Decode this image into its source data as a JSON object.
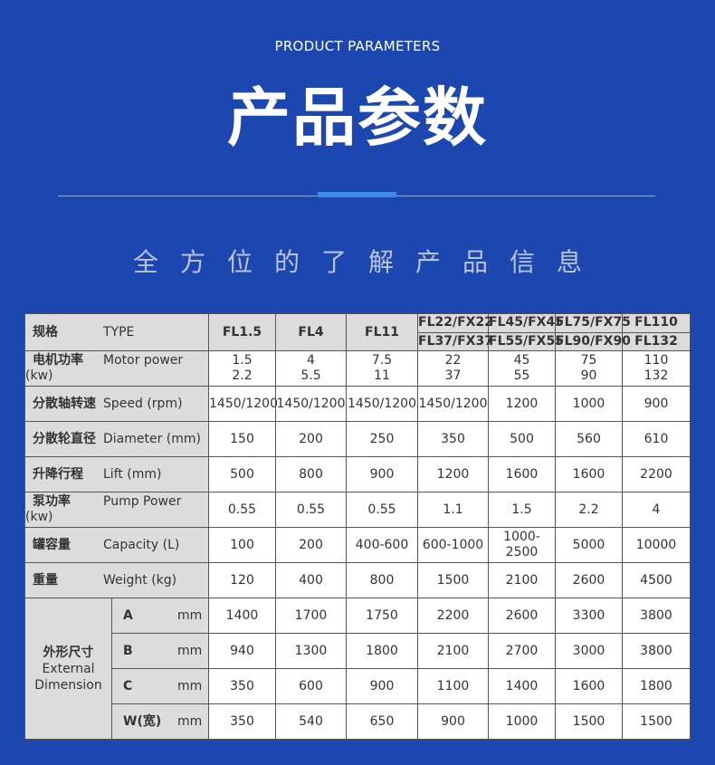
{
  "header": {
    "en_title": "PRODUCT PARAMETERS",
    "cn_title": "产品参数",
    "subtitle": "全方位的了解产品信息"
  },
  "table": {
    "type_label_cn": "规格",
    "type_label_en": "TYPE",
    "models": [
      {
        "top": "FL1.5"
      },
      {
        "top": "FL4"
      },
      {
        "top": "FL11"
      },
      {
        "top": "FL22/FX22",
        "bottom": "FL37/FX37"
      },
      {
        "top": "FL45/FX45",
        "bottom": "FL55/FX55"
      },
      {
        "top": "FL75/FX75",
        "bottom": "FL90/FX90"
      },
      {
        "top": "FL110",
        "bottom": "FL132"
      }
    ],
    "motor": {
      "cn": "电机功率",
      "en": "Motor power (kw)",
      "values": [
        [
          "1.5",
          "2.2"
        ],
        [
          "4",
          "5.5"
        ],
        [
          "7.5",
          "11"
        ],
        [
          "22",
          "37"
        ],
        [
          "45",
          "55"
        ],
        [
          "75",
          "90"
        ],
        [
          "110",
          "132"
        ]
      ]
    },
    "rows": [
      {
        "cn": "分散轴转速",
        "en": "Speed (rpm)",
        "values": [
          "1450/1200",
          "1450/1200",
          "1450/1200",
          "1450/1200",
          "1200",
          "1000",
          "900"
        ]
      },
      {
        "cn": "分散轮直径",
        "en": "Diameter (mm)",
        "values": [
          "150",
          "200",
          "250",
          "350",
          "500",
          "560",
          "610"
        ]
      },
      {
        "cn": "升降行程",
        "en": "Lift (mm)",
        "values": [
          "500",
          "800",
          "900",
          "1200",
          "1600",
          "1600",
          "2200"
        ]
      },
      {
        "cn": "泵功率",
        "en": "Pump Power (kw)",
        "values": [
          "0.55",
          "0.55",
          "0.55",
          "1.1",
          "1.5",
          "2.2",
          "4"
        ]
      },
      {
        "cn": "罐容量",
        "en": "Capacity (L)",
        "values": [
          "100",
          "200",
          "400-600",
          "600-1000",
          "1000-2500",
          "5000",
          "10000"
        ]
      },
      {
        "cn": "重量",
        "en": "Weight (kg)",
        "values": [
          "120",
          "400",
          "800",
          "1500",
          "2100",
          "2600",
          "4500"
        ]
      }
    ],
    "dimension": {
      "cn": "外形尺寸",
      "en1": "External",
      "en2": "Dimension",
      "rows": [
        {
          "key": "A",
          "unit": "mm",
          "values": [
            "1400",
            "1700",
            "1750",
            "2200",
            "2600",
            "3300",
            "3800"
          ]
        },
        {
          "key": "B",
          "unit": "mm",
          "values": [
            "940",
            "1300",
            "1800",
            "2100",
            "2700",
            "3000",
            "3800"
          ]
        },
        {
          "key": "C",
          "unit": "mm",
          "values": [
            "350",
            "600",
            "900",
            "1100",
            "1400",
            "1600",
            "1800"
          ]
        },
        {
          "key": "W(宽)",
          "unit": "mm",
          "values": [
            "350",
            "540",
            "650",
            "900",
            "1000",
            "1500",
            "1500"
          ]
        }
      ]
    }
  },
  "colors": {
    "background": "#1c47b0",
    "accent": "#3d8ae8",
    "label_bg": "#dcdcdc"
  }
}
